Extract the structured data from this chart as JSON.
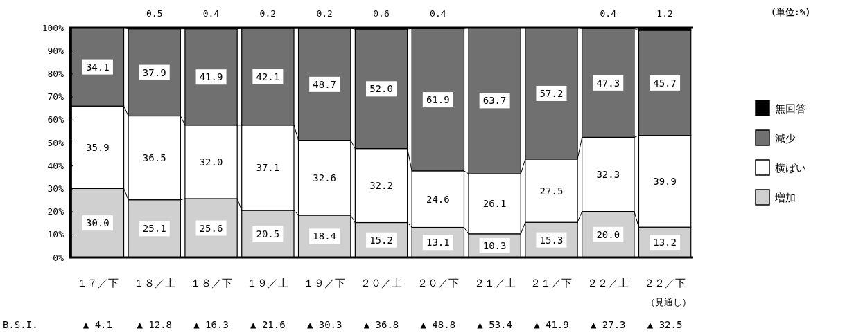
{
  "chart_data": {
    "type": "bar",
    "stacked": true,
    "categories": [
      "１７／下",
      "１８／上",
      "１８／下",
      "１９／上",
      "１９／下",
      "２０／上",
      "２０／下",
      "２１／上",
      "２１／下",
      "２２／上",
      "２２／下"
    ],
    "ylim": [
      0,
      100
    ],
    "yticks": [
      {
        "value": 0,
        "label": "0%"
      },
      {
        "value": 10,
        "label": "10%"
      },
      {
        "value": 20,
        "label": "20%"
      },
      {
        "value": 30,
        "label": "30%"
      },
      {
        "value": 40,
        "label": "40%"
      },
      {
        "value": 50,
        "label": "50%"
      },
      {
        "value": 60,
        "label": "60%"
      },
      {
        "value": 70,
        "label": "70%"
      },
      {
        "value": 80,
        "label": "80%"
      },
      {
        "value": 90,
        "label": "90%"
      },
      {
        "value": 100,
        "label": "100%"
      }
    ],
    "legend": "right",
    "grid": false,
    "series": [
      {
        "name": "増加",
        "color": "#d0d0d0",
        "values": [
          30.0,
          25.1,
          25.6,
          20.5,
          18.4,
          15.2,
          13.1,
          10.3,
          15.3,
          20.0,
          13.2
        ],
        "value_labels": [
          "30.0",
          "25.1",
          "25.6",
          "20.5",
          "18.4",
          "15.2",
          "13.1",
          "10.3",
          "15.3",
          "20.0",
          "13.2"
        ]
      },
      {
        "name": "横ばい",
        "color": "#ffffff",
        "values": [
          35.9,
          36.5,
          32.0,
          37.1,
          32.6,
          32.2,
          24.6,
          26.1,
          27.5,
          32.3,
          39.9
        ],
        "value_labels": [
          "35.9",
          "36.5",
          "32.0",
          "37.1",
          "32.6",
          "32.2",
          "24.6",
          "26.1",
          "27.5",
          "32.3",
          "39.9"
        ]
      },
      {
        "name": "減少",
        "color": "#707070",
        "values": [
          34.1,
          37.9,
          41.9,
          42.1,
          48.7,
          52.0,
          61.9,
          63.7,
          57.2,
          47.3,
          45.7
        ],
        "value_labels": [
          "34.1",
          "37.9",
          "41.9",
          "42.1",
          "48.7",
          "52.0",
          "61.9",
          "63.7",
          "57.2",
          "47.3",
          "45.7"
        ]
      },
      {
        "name": "無回答",
        "color": "#000000",
        "values": [
          null,
          0.5,
          0.4,
          0.2,
          0.2,
          0.6,
          0.4,
          null,
          null,
          0.4,
          1.2
        ],
        "value_labels": [
          null,
          "0.5",
          "0.4",
          "0.2",
          "0.2",
          "0.6",
          "0.4",
          null,
          null,
          "0.4",
          "1.2"
        ]
      }
    ],
    "annotations": [
      "(単位:%)",
      "（見通し）",
      "B.S.I.",
      "▲ 4.1",
      "▲ 12.8",
      "▲ 16.3",
      "▲ 21.6",
      "▲ 30.3",
      "▲ 36.8",
      "▲ 48.8",
      "▲ 53.4",
      "▲ 41.9",
      "▲ 27.3",
      "▲ 32.5"
    ]
  }
}
